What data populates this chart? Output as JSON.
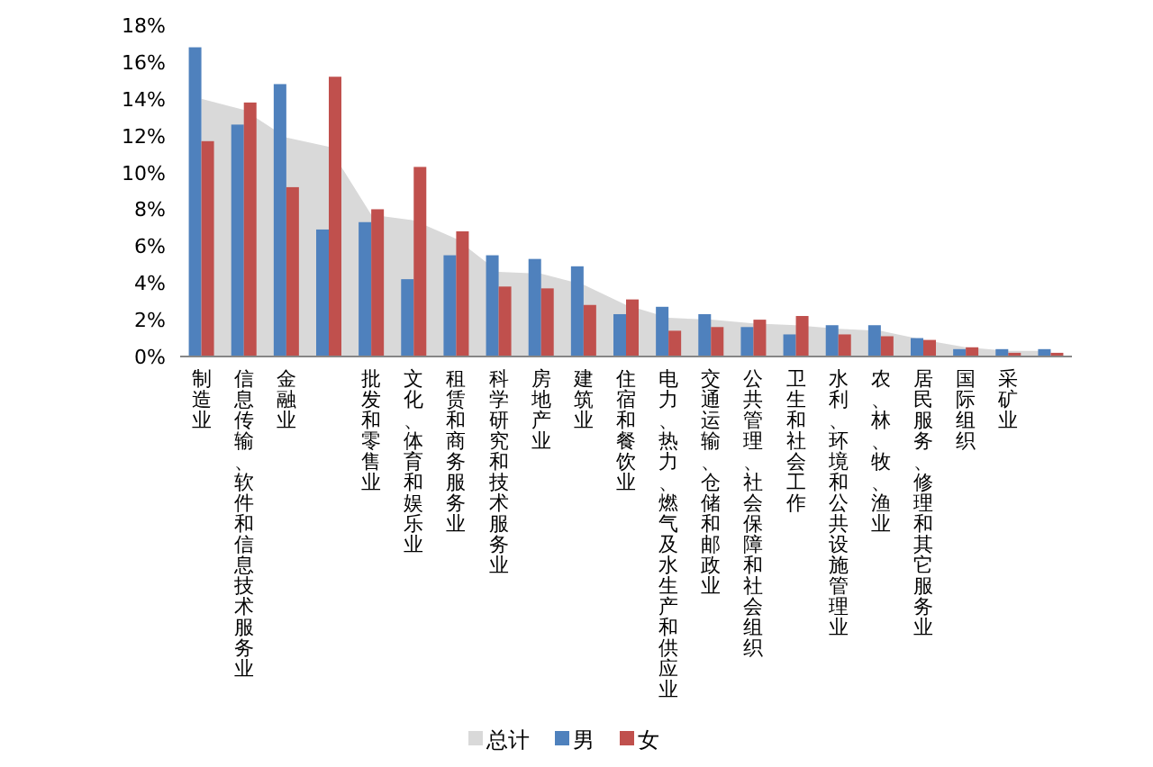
{
  "chart_data": {
    "type": "bar",
    "categories": [
      "制造业",
      "信息传输、软件和信息技术服务业",
      "金融业",
      null,
      "批发和零售业",
      "文化、体育和娱乐业",
      "租赁和商务服务业",
      "科学研究和技术服务业",
      "房地产业",
      "建筑业",
      "住宿和餐饮业",
      "电力、热力、燃气及水生产和供应业",
      "交通运输、仓储和邮政业",
      "公共管理、社会保障和社会组织",
      "卫生和社会工作",
      "水利、环境和公共设施管理业",
      "农、林、牧、渔业",
      "居民服务、修理和其它服务业",
      "国际组织",
      "采矿业",
      null
    ],
    "series": [
      {
        "name": "总计",
        "type": "area",
        "color": "#d9d9d9",
        "values": [
          14.0,
          13.4,
          11.9,
          11.4,
          7.7,
          7.4,
          6.4,
          4.6,
          4.5,
          3.9,
          2.8,
          2.1,
          2.0,
          1.8,
          1.7,
          1.5,
          1.4,
          0.9,
          0.5,
          0.3,
          0.3
        ]
      },
      {
        "name": "男",
        "color": "#4f81bd",
        "values": [
          16.8,
          12.6,
          14.8,
          6.9,
          7.3,
          4.2,
          5.5,
          5.5,
          5.3,
          4.9,
          2.3,
          2.7,
          2.3,
          1.6,
          1.2,
          1.7,
          1.7,
          1.0,
          0.4,
          0.4,
          0.4
        ]
      },
      {
        "name": "女",
        "color": "#c0504d",
        "values": [
          11.7,
          13.8,
          9.2,
          15.2,
          8.0,
          10.3,
          6.8,
          3.8,
          3.7,
          2.8,
          3.1,
          1.4,
          1.6,
          2.0,
          2.2,
          1.2,
          1.1,
          0.9,
          0.5,
          0.2,
          0.2
        ]
      }
    ],
    "ylim": [
      0,
      18
    ],
    "yticks": [
      {
        "value": 0,
        "label": "0%"
      },
      {
        "value": 2,
        "label": "2%"
      },
      {
        "value": 4,
        "label": "4%"
      },
      {
        "value": 6,
        "label": "6%"
      },
      {
        "value": 8,
        "label": "8%"
      },
      {
        "value": 10,
        "label": "10%"
      },
      {
        "value": 12,
        "label": "12%"
      },
      {
        "value": 14,
        "label": "14%"
      },
      {
        "value": 16,
        "label": "16%"
      },
      {
        "value": 18,
        "label": "18%"
      }
    ],
    "legend": "bottom"
  }
}
